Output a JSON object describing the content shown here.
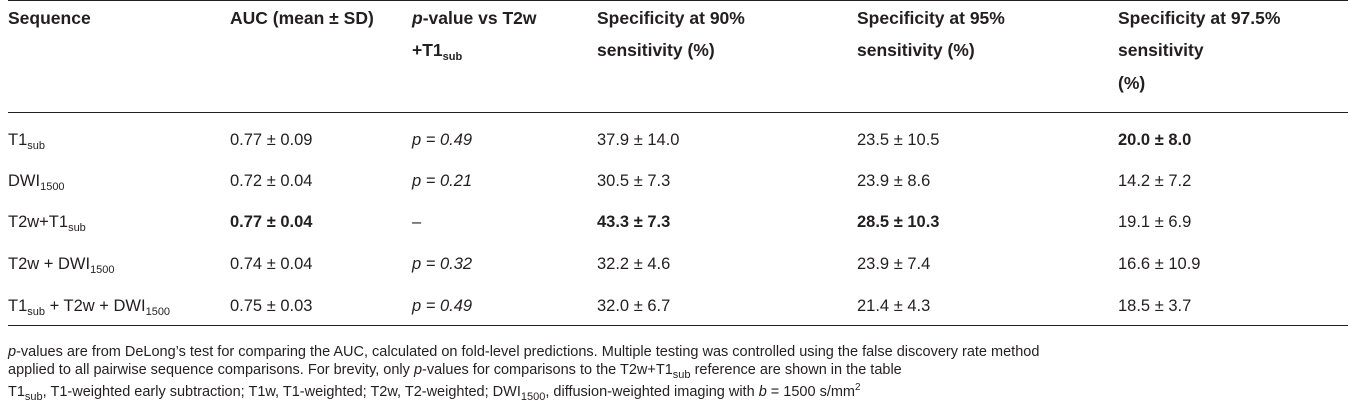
{
  "header": {
    "sequence": "Sequence",
    "auc": "AUC (mean ± SD)",
    "pvalue_italic": "p",
    "pvalue_rest": "-value vs T2w",
    "pvalue_line2_plus": "+T1",
    "pvalue_line2_sub": "sub",
    "spec90_l1": "Specificity at 90%",
    "spec90_l2": "sensitivity (%)",
    "spec95_l1": "Specificity at 95%",
    "spec95_l2": "sensitivity (%)",
    "spec975_l1": "Specificity at 97.5%",
    "spec975_l2": "sensitivity",
    "spec975_l3": "(%)"
  },
  "rows": [
    {
      "seq_parts": [
        "T1",
        "sub"
      ],
      "auc": "0.77 ± 0.09",
      "p": "p = 0.49",
      "s90": "37.9 ± 14.0",
      "s95": "23.5 ± 10.5",
      "s975": "20.0 ± 8.0"
    },
    {
      "seq_parts": [
        "DWI",
        "1500"
      ],
      "auc": "0.72 ± 0.04",
      "p": "p = 0.21",
      "s90": "30.5 ± 7.3",
      "s95": "23.9 ± 8.6",
      "s975": "14.2 ± 7.2"
    },
    {
      "seq_parts": [
        "T2w+T1",
        "sub"
      ],
      "auc": "0.77 ± 0.04",
      "p": "–",
      "s90": "43.3 ± 7.3",
      "s95": "28.5 ± 10.3",
      "s975": "19.1 ± 6.9"
    },
    {
      "seq_parts": [
        "T2w + DWI",
        "1500"
      ],
      "auc": "0.74 ± 0.04",
      "p": "p = 0.32",
      "s90": "32.2 ± 4.6",
      "s95": "23.9 ± 7.4",
      "s975": "16.6 ± 10.9"
    },
    {
      "seq_parts": [
        "T1",
        "sub",
        " + T2w + DWI",
        "1500"
      ],
      "auc": "0.75 ± 0.03",
      "p": "p = 0.49",
      "s90": "32.0 ± 6.7",
      "s95": "21.4 ± 4.3",
      "s975": "18.5 ± 3.7"
    }
  ],
  "footnotes": {
    "line1_italic": "p",
    "line1_rest": "-values are from DeLong’s test for comparing the AUC, calculated on fold-level predictions. Multiple testing was controlled using the false discovery rate method",
    "line2_a": "applied to all pairwise sequence comparisons. For brevity, only ",
    "line2_italic": "p",
    "line2_b": "-values for comparisons to the T2w+T1",
    "line2_sub": "sub",
    "line2_c": " reference are shown in the table",
    "line3_a": "T1",
    "line3_sub": "sub",
    "line3_b": ", T1-weighted early subtraction; T1w, T1-weighted; T2w, T2-weighted; DWI",
    "line3_sub2": "1500",
    "line3_c": ", diffusion-weighted imaging with ",
    "line3_italic": "b",
    "line3_d": " = 1500 s/mm",
    "line3_sup": "2"
  }
}
